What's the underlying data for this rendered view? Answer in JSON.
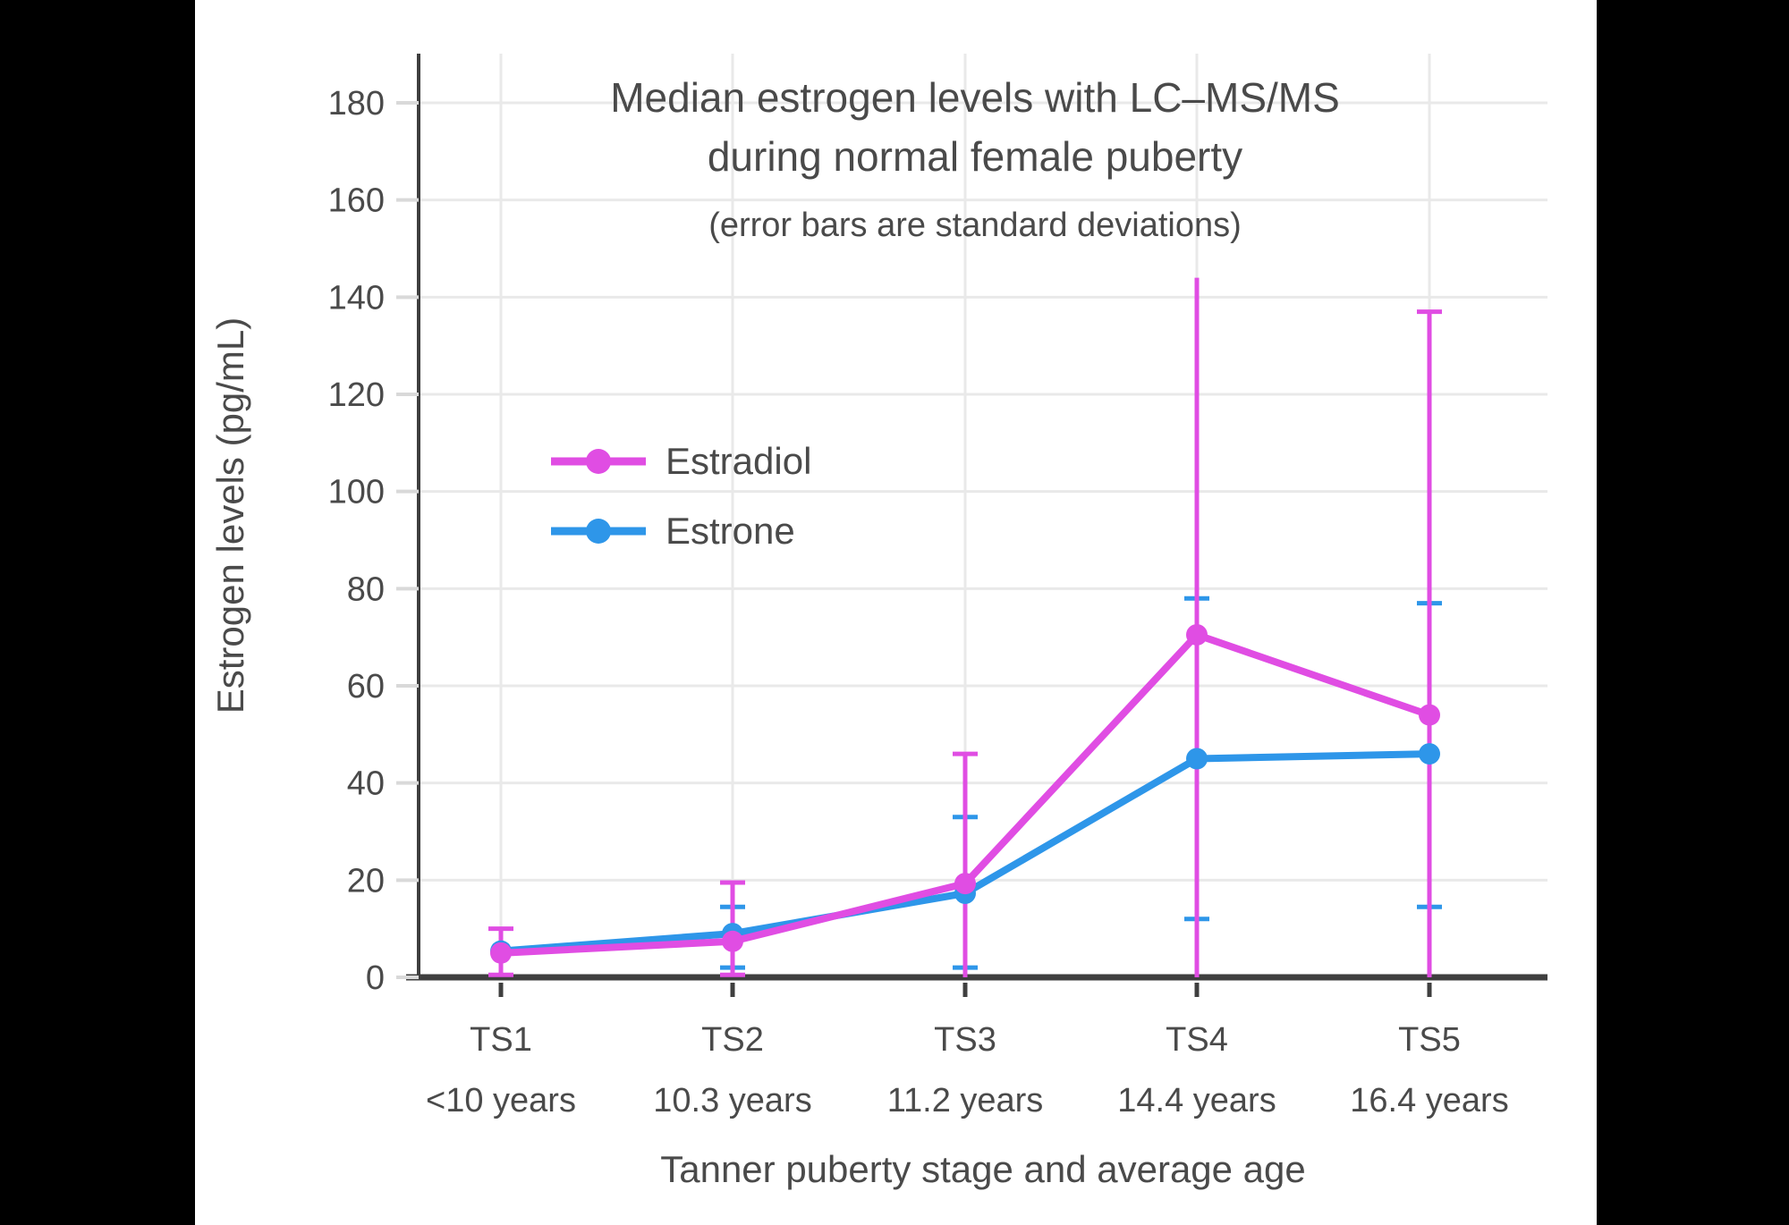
{
  "page": {
    "background": "#000000",
    "paper_background": "#ffffff",
    "text_color": "#4a4a4a",
    "axis_line_color": "#3f3f3f",
    "grid_color": "#e9e9e9",
    "y_tick_stub_color": "#d9d9d9"
  },
  "chart_data": {
    "type": "line",
    "title_line1": "Median estrogen levels with LC–MS/MS",
    "title_line2": "during normal female puberty",
    "subtitle": "(error bars are standard deviations)",
    "xlabel": "Tanner puberty stage and average age",
    "ylabel": "Estrogen levels (pg/mL)",
    "categories": [
      "TS1",
      "TS2",
      "TS3",
      "TS4",
      "TS5"
    ],
    "category_sublabels": [
      "<10 years",
      "10.3 years",
      "11.2 years",
      "14.4 years",
      "16.4 years"
    ],
    "yticks": [
      0,
      20,
      40,
      60,
      80,
      100,
      120,
      140,
      160,
      180
    ],
    "ylim": [
      0,
      190
    ],
    "grid": true,
    "legend_position": "upper-left-inside",
    "legend_entries": [
      "Estradiol",
      "Estrone"
    ],
    "series": [
      {
        "name": "Estrone",
        "color": "#2E96E9",
        "unit": "pg/mL",
        "points": [
          {
            "x": "TS1",
            "y": 5.4,
            "err_top": null,
            "err_bottom": null,
            "cap_top": false,
            "cap_bottom": false
          },
          {
            "x": "TS2",
            "y": 9,
            "err_top": 14.5,
            "err_bottom": 2,
            "cap_top": true,
            "cap_bottom": true
          },
          {
            "x": "TS3",
            "y": 17.3,
            "err_top": 33,
            "err_bottom": 2,
            "cap_top": true,
            "cap_bottom": true
          },
          {
            "x": "TS4",
            "y": 45,
            "err_top": 78,
            "err_bottom": 12,
            "cap_top": true,
            "cap_bottom": true
          },
          {
            "x": "TS5",
            "y": 46,
            "err_top": 77,
            "err_bottom": 14.5,
            "cap_top": true,
            "cap_bottom": true
          }
        ]
      },
      {
        "name": "Estradiol",
        "color": "#E04DE3",
        "unit": "pg/mL",
        "points": [
          {
            "x": "TS1",
            "y": 5,
            "err_top": 10,
            "err_bottom": 0.5,
            "cap_top": true,
            "cap_bottom": true
          },
          {
            "x": "TS2",
            "y": 7.4,
            "err_top": 19.5,
            "err_bottom": 0.5,
            "cap_top": true,
            "cap_bottom": true
          },
          {
            "x": "TS3",
            "y": 19.3,
            "err_top": 46,
            "err_bottom": 0,
            "cap_top": true,
            "cap_bottom": false
          },
          {
            "x": "TS4",
            "y": 70.5,
            "err_top": 144,
            "err_bottom": 0,
            "cap_top": false,
            "cap_bottom": false
          },
          {
            "x": "TS5",
            "y": 54,
            "err_top": 137,
            "err_bottom": 0,
            "cap_top": true,
            "cap_bottom": false
          }
        ]
      }
    ]
  }
}
